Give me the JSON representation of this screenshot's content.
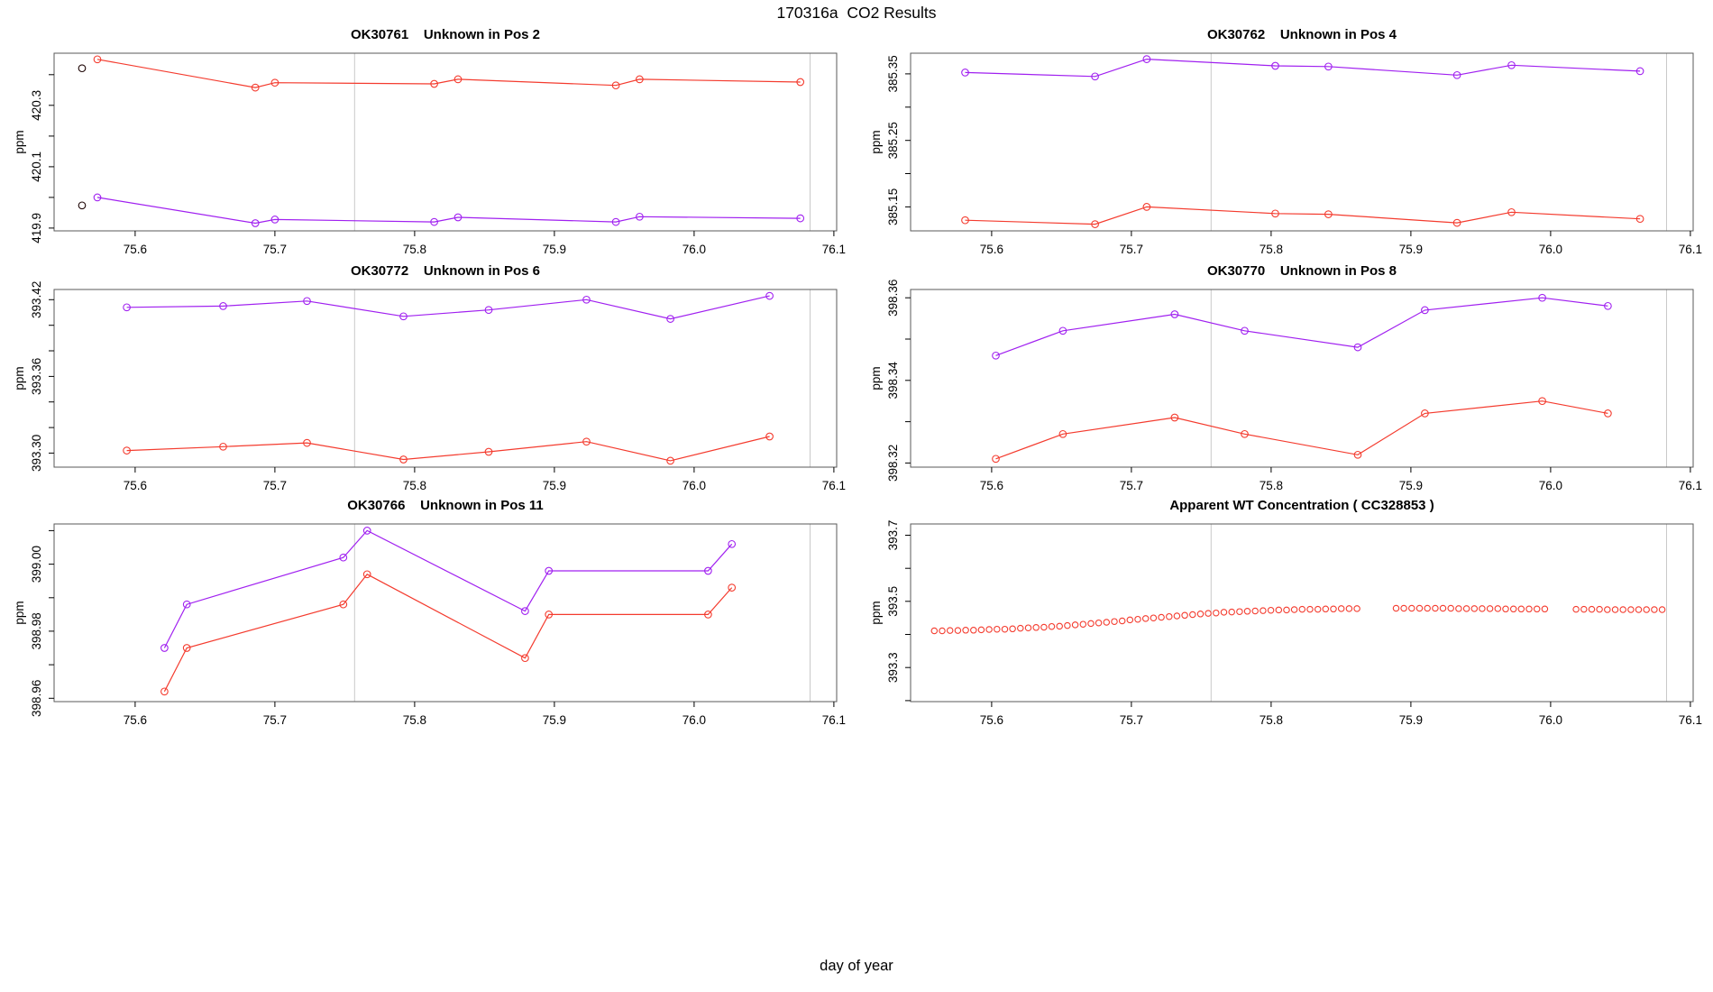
{
  "main": {
    "title": "170316a  CO2 Results",
    "xlabel": "day of year"
  },
  "colors": {
    "red_series": "#f43b2e",
    "purple_series": "#a020f0",
    "flagged_point": "#1c0404",
    "reference_line": "#c9c9c9",
    "box": "#5a5a5a"
  },
  "chart_data": [
    {
      "type": "line",
      "title": "OK30761    Unknown in Pos 2",
      "ylabel": "ppm",
      "xlim": [
        75.542,
        76.102
      ],
      "ylim": [
        419.891,
        420.47
      ],
      "xticks": [
        75.6,
        75.7,
        75.8,
        75.9,
        76.0,
        76.1
      ],
      "xtick_labels": [
        "75.6",
        "75.7",
        "75.8",
        "75.9",
        "76.0",
        "76.1"
      ],
      "yticks": [
        419.9,
        420.0,
        420.1,
        420.2,
        420.3,
        420.4
      ],
      "ytick_labels": [
        "419.9",
        "",
        "420.1",
        "",
        "420.3",
        ""
      ],
      "vlines": [
        75.757,
        76.083
      ],
      "series": [
        {
          "name": "red-series",
          "type": "line",
          "color": "#f43b2e",
          "x": [
            75.573,
            75.686,
            75.7,
            75.814,
            75.831,
            75.944,
            75.961,
            76.076
          ],
          "y": [
            420.45,
            420.358,
            420.374,
            420.37,
            420.385,
            420.365,
            420.385,
            420.376
          ]
        },
        {
          "name": "purple-series",
          "type": "line",
          "color": "#a020f0",
          "x": [
            75.573,
            75.686,
            75.7,
            75.814,
            75.831,
            75.944,
            75.961,
            76.076
          ],
          "y": [
            420.0,
            419.916,
            419.928,
            419.92,
            419.935,
            419.92,
            419.937,
            419.932
          ]
        },
        {
          "name": "flagged-start-points",
          "type": "scatter",
          "color": "#1c0404",
          "x": [
            75.562,
            75.562
          ],
          "y": [
            420.421,
            419.974
          ]
        }
      ]
    },
    {
      "type": "line",
      "title": "OK30762    Unknown in Pos 4",
      "ylabel": "ppm",
      "xlim": [
        75.542,
        76.102
      ],
      "ylim": [
        385.114,
        385.381
      ],
      "xticks": [
        75.6,
        75.7,
        75.8,
        75.9,
        76.0,
        76.1
      ],
      "xtick_labels": [
        "75.6",
        "75.7",
        "75.8",
        "75.9",
        "76.0",
        "76.1"
      ],
      "yticks": [
        385.15,
        385.2,
        385.25,
        385.3,
        385.35
      ],
      "ytick_labels": [
        "385.15",
        "",
        "385.25",
        "",
        "385.35"
      ],
      "vlines": [
        75.757,
        76.083
      ],
      "series": [
        {
          "name": "purple-series",
          "type": "line",
          "color": "#a020f0",
          "x": [
            75.581,
            75.674,
            75.711,
            75.803,
            75.841,
            75.933,
            75.972,
            76.064
          ],
          "y": [
            385.352,
            385.346,
            385.372,
            385.362,
            385.361,
            385.348,
            385.363,
            385.354
          ]
        },
        {
          "name": "red-series",
          "type": "line",
          "color": "#f43b2e",
          "x": [
            75.581,
            75.674,
            75.711,
            75.803,
            75.841,
            75.933,
            75.972,
            76.064
          ],
          "y": [
            385.13,
            385.124,
            385.15,
            385.14,
            385.139,
            385.126,
            385.142,
            385.132
          ]
        }
      ]
    },
    {
      "type": "line",
      "title": "OK30772    Unknown in Pos 6",
      "ylabel": "ppm",
      "xlim": [
        75.542,
        76.102
      ],
      "ylim": [
        393.289,
        393.428
      ],
      "xticks": [
        75.6,
        75.7,
        75.8,
        75.9,
        76.0,
        76.1
      ],
      "xtick_labels": [
        "75.6",
        "75.7",
        "75.8",
        "75.9",
        "76.0",
        "76.1"
      ],
      "yticks": [
        393.3,
        393.32,
        393.34,
        393.36,
        393.38,
        393.4,
        393.42
      ],
      "ytick_labels": [
        "393.30",
        "",
        "",
        "393.36",
        "",
        "",
        "393.42"
      ],
      "vlines": [
        75.757,
        76.083
      ],
      "series": [
        {
          "name": "purple-series",
          "type": "line",
          "color": "#a020f0",
          "x": [
            75.594,
            75.663,
            75.723,
            75.792,
            75.853,
            75.923,
            75.983,
            76.054
          ],
          "y": [
            393.414,
            393.415,
            393.419,
            393.407,
            393.412,
            393.42,
            393.405,
            393.423
          ]
        },
        {
          "name": "red-series",
          "type": "line",
          "color": "#f43b2e",
          "x": [
            75.594,
            75.663,
            75.723,
            75.792,
            75.853,
            75.923,
            75.983,
            76.054
          ],
          "y": [
            393.302,
            393.305,
            393.308,
            393.295,
            393.301,
            393.309,
            393.294,
            393.313
          ]
        }
      ]
    },
    {
      "type": "line",
      "title": "OK30770    Unknown in Pos 8",
      "ylabel": "ppm",
      "xlim": [
        75.542,
        76.102
      ],
      "ylim": [
        398.319,
        398.362
      ],
      "xticks": [
        75.6,
        75.7,
        75.8,
        75.9,
        76.0,
        76.1
      ],
      "xtick_labels": [
        "75.6",
        "75.7",
        "75.8",
        "75.9",
        "76.0",
        "76.1"
      ],
      "yticks": [
        398.32,
        398.33,
        398.34,
        398.35,
        398.36
      ],
      "ytick_labels": [
        "398.32",
        "",
        "398.34",
        "",
        "398.36"
      ],
      "vlines": [
        75.757,
        76.083
      ],
      "series": [
        {
          "name": "purple-series",
          "type": "line",
          "color": "#a020f0",
          "x": [
            75.603,
            75.651,
            75.731,
            75.781,
            75.862,
            75.91,
            75.994,
            76.041
          ],
          "y": [
            398.346,
            398.352,
            398.356,
            398.352,
            398.348,
            398.357,
            398.36,
            398.358
          ]
        },
        {
          "name": "red-series",
          "type": "line",
          "color": "#f43b2e",
          "x": [
            75.603,
            75.651,
            75.731,
            75.781,
            75.862,
            75.91,
            75.994,
            76.041
          ],
          "y": [
            398.321,
            398.327,
            398.331,
            398.327,
            398.322,
            398.332,
            398.335,
            398.332
          ]
        }
      ]
    },
    {
      "type": "line",
      "title": "OK30766    Unknown in Pos 11",
      "ylabel": "ppm",
      "xlim": [
        75.542,
        76.102
      ],
      "ylim": [
        398.959,
        399.012
      ],
      "xticks": [
        75.6,
        75.7,
        75.8,
        75.9,
        76.0,
        76.1
      ],
      "xtick_labels": [
        "75.6",
        "75.7",
        "75.8",
        "75.9",
        "76.0",
        "76.1"
      ],
      "yticks": [
        398.96,
        398.97,
        398.98,
        398.99,
        399.0,
        399.01
      ],
      "ytick_labels": [
        "398.96",
        "",
        "398.98",
        "",
        "399.00",
        ""
      ],
      "vlines": [
        75.757,
        76.083
      ],
      "series": [
        {
          "name": "purple-series",
          "type": "line",
          "color": "#a020f0",
          "x": [
            75.621,
            75.637,
            75.749,
            75.766,
            75.879,
            75.896,
            76.01,
            76.027
          ],
          "y": [
            398.975,
            398.988,
            399.002,
            399.01,
            398.986,
            398.998,
            398.998,
            399.006
          ]
        },
        {
          "name": "red-series",
          "type": "line",
          "color": "#f43b2e",
          "x": [
            75.621,
            75.637,
            75.749,
            75.766,
            75.879,
            75.896,
            76.01,
            76.027
          ],
          "y": [
            398.962,
            398.975,
            398.988,
            398.997,
            398.972,
            398.985,
            398.985,
            398.993
          ]
        }
      ]
    },
    {
      "type": "scatter",
      "title": "Apparent WT Concentration ( CC328853 )",
      "ylabel": "ppm",
      "xlim": [
        75.542,
        76.102
      ],
      "ylim": [
        393.197,
        393.734
      ],
      "xticks": [
        75.6,
        75.7,
        75.8,
        75.9,
        76.0,
        76.1
      ],
      "xtick_labels": [
        "75.6",
        "75.7",
        "75.8",
        "75.9",
        "76.0",
        "76.1"
      ],
      "yticks": [
        393.2,
        393.3,
        393.4,
        393.5,
        393.6,
        393.7
      ],
      "ytick_labels": [
        "",
        "393.3",
        "",
        "393.5",
        "",
        "393.7"
      ],
      "vlines": [
        75.757,
        76.083
      ],
      "series": [
        {
          "name": "red-series",
          "type": "scatter",
          "color": "#f43b2e",
          "r": 3.2,
          "x": [
            75.559,
            75.5646,
            75.5702,
            75.5758,
            75.5814,
            75.587,
            75.5926,
            75.5982,
            75.6038,
            75.6094,
            75.615,
            75.6206,
            75.6262,
            75.6318,
            75.6374,
            75.643,
            75.6486,
            75.6542,
            75.6598,
            75.6654,
            75.671,
            75.6766,
            75.6822,
            75.6878,
            75.6934,
            75.699,
            75.7046,
            75.7102,
            75.7158,
            75.7214,
            75.727,
            75.7326,
            75.7382,
            75.7438,
            75.7494,
            75.755,
            75.7606,
            75.7662,
            75.7718,
            75.7774,
            75.783,
            75.7886,
            75.7942,
            75.7998,
            75.8054,
            75.811,
            75.8166,
            75.8222,
            75.8278,
            75.8334,
            75.839,
            75.8446,
            75.8502,
            75.8558,
            75.8614,
            75.8894,
            75.895,
            75.9006,
            75.9062,
            75.9118,
            75.9174,
            75.923,
            75.9286,
            75.9342,
            75.9398,
            75.9454,
            75.951,
            75.9566,
            75.9622,
            75.9678,
            75.9734,
            75.979,
            75.9846,
            75.9902,
            75.9958,
            76.0182,
            76.0238,
            76.0294,
            76.035,
            76.0406,
            76.0462,
            76.0518,
            76.0574,
            76.063,
            76.0686,
            76.0742,
            76.0798
          ],
          "y": [
            393.411,
            393.411,
            393.412,
            393.412,
            393.413,
            393.413,
            393.414,
            393.415,
            393.416,
            393.416,
            393.417,
            393.419,
            393.42,
            393.421,
            393.422,
            393.424,
            393.425,
            393.427,
            393.429,
            393.431,
            393.433,
            393.435,
            393.437,
            393.439,
            393.441,
            393.444,
            393.446,
            393.448,
            393.45,
            393.452,
            393.454,
            393.456,
            393.458,
            393.46,
            393.462,
            393.464,
            393.465,
            393.467,
            393.468,
            393.469,
            393.47,
            393.471,
            393.472,
            393.473,
            393.474,
            393.474,
            393.475,
            393.476,
            393.476,
            393.476,
            393.477,
            393.477,
            393.478,
            393.478,
            393.478,
            393.479,
            393.479,
            393.479,
            393.479,
            393.479,
            393.479,
            393.479,
            393.479,
            393.478,
            393.478,
            393.478,
            393.478,
            393.478,
            393.478,
            393.477,
            393.477,
            393.477,
            393.477,
            393.477,
            393.477,
            393.476,
            393.476,
            393.476,
            393.476,
            393.475,
            393.475,
            393.475,
            393.475,
            393.475,
            393.475,
            393.475,
            393.475
          ]
        }
      ]
    }
  ]
}
